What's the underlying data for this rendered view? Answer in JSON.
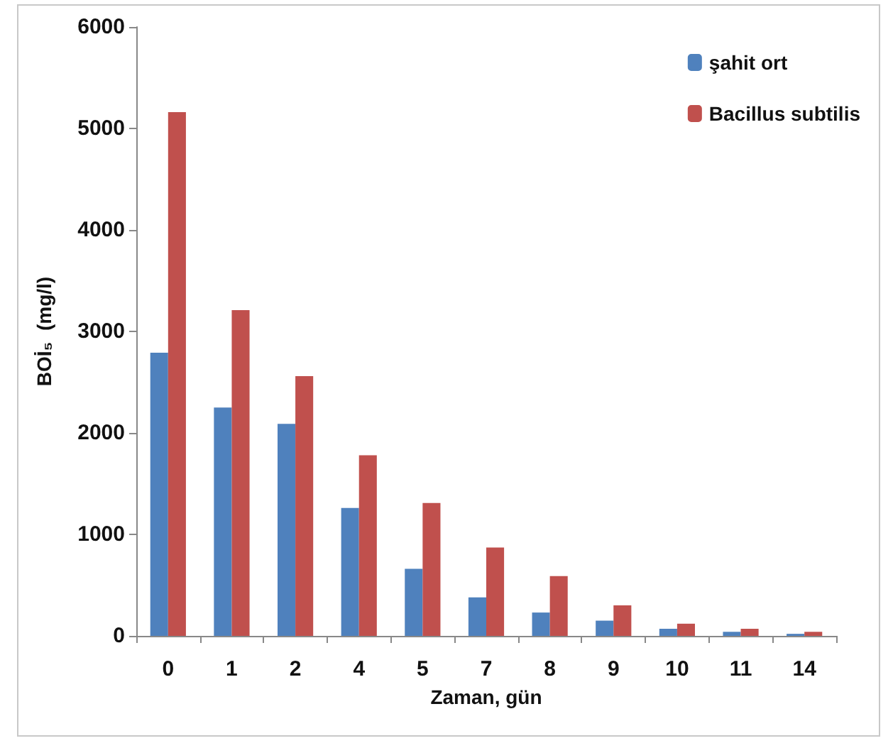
{
  "chart_data": {
    "type": "bar",
    "xlabel": "Zaman, gün",
    "ylabel": "BOİ₅  (mg/l)",
    "categories": [
      "0",
      "1",
      "2",
      "4",
      "5",
      "7",
      "8",
      "9",
      "10",
      "11",
      "14"
    ],
    "series": [
      {
        "name": "şahit ort",
        "color": "#4f81bd",
        "values": [
          2790,
          2250,
          2090,
          1260,
          660,
          380,
          230,
          150,
          70,
          40,
          20
        ]
      },
      {
        "name": "Bacillus subtilis",
        "color": "#c0504d",
        "values": [
          5160,
          3210,
          2560,
          1780,
          1310,
          870,
          590,
          300,
          120,
          70,
          40
        ]
      }
    ],
    "ylim": [
      0,
      6000
    ],
    "yticks": [
      0,
      1000,
      2000,
      3000,
      4000,
      5000,
      6000
    ],
    "grid": false,
    "legend": "top right"
  }
}
